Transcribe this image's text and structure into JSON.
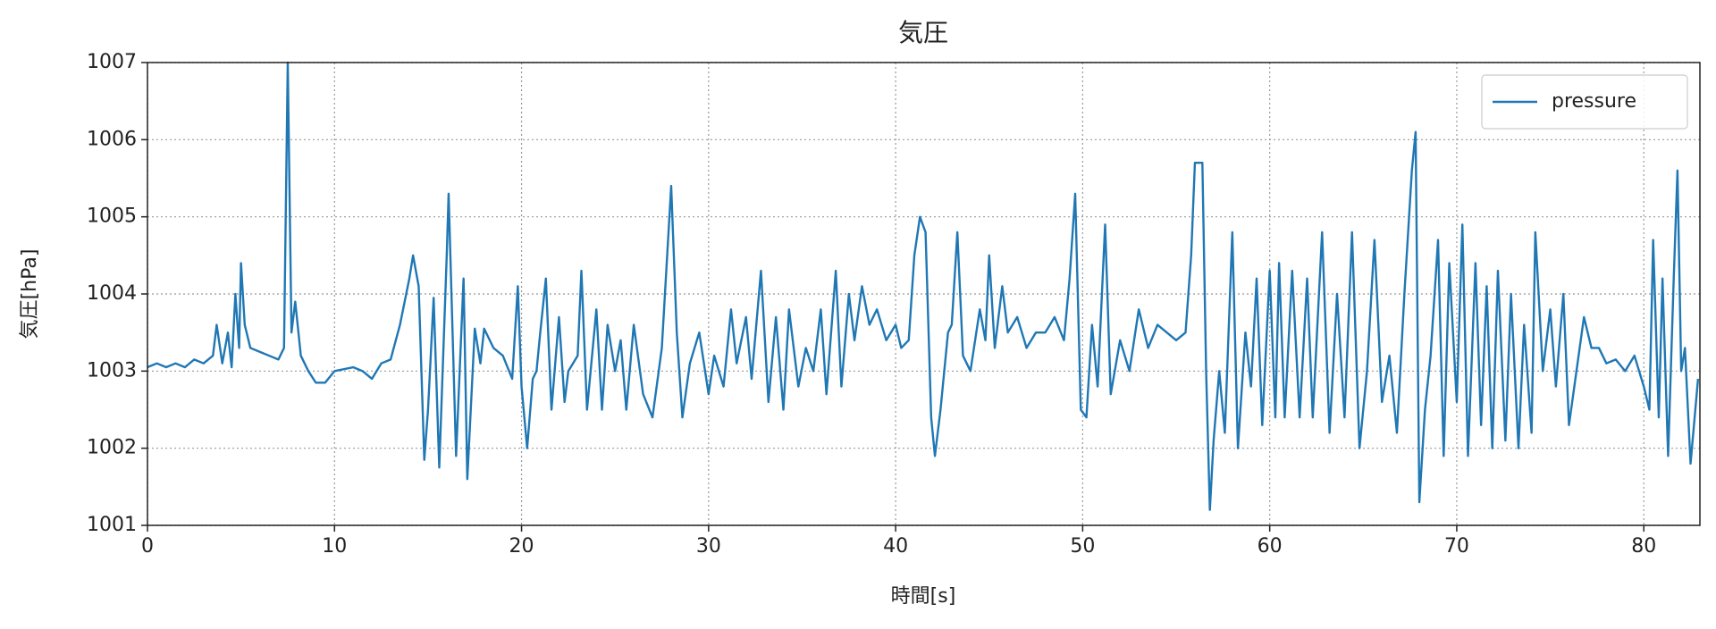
{
  "chart_data": {
    "type": "line",
    "title": "気圧",
    "x_label": "時間[s]",
    "y_label": "気圧[hPa]",
    "x": [
      0,
      0.5,
      1,
      1.5,
      2,
      2.5,
      3,
      3.5,
      3.7,
      4,
      4.3,
      4.5,
      4.7,
      4.9,
      5.0,
      5.2,
      5.5,
      6,
      6.5,
      7,
      7.3,
      7.5,
      7.7,
      7.9,
      8.2,
      8.6,
      9,
      9.5,
      10,
      11,
      11.5,
      12,
      12.5,
      13,
      13.5,
      14,
      14.2,
      14.5,
      14.8,
      15.0,
      15.3,
      15.6,
      16.0,
      16.1,
      16.5,
      16.9,
      17.1,
      17.5,
      17.8,
      18,
      18.5,
      19,
      19.5,
      19.8,
      20,
      20.3,
      20.6,
      20.8,
      21.0,
      21.3,
      21.6,
      22,
      22.3,
      22.5,
      23.0,
      23.2,
      23.5,
      24,
      24.3,
      24.6,
      25,
      25.3,
      25.6,
      26,
      26.5,
      27,
      27.5,
      28,
      28.3,
      28.6,
      29,
      29.5,
      30,
      30.3,
      30.8,
      31.2,
      31.5,
      32,
      32.3,
      32.8,
      33.2,
      33.6,
      34,
      34.3,
      34.8,
      35.2,
      35.6,
      36,
      36.3,
      36.8,
      37.1,
      37.5,
      37.8,
      38.2,
      38.6,
      39,
      39.5,
      40,
      40.3,
      40.7,
      41,
      41.3,
      41.6,
      41.9,
      42.1,
      42.4,
      42.8,
      43.0,
      43.3,
      43.6,
      44,
      44.5,
      44.8,
      45.0,
      45.3,
      45.7,
      46,
      46.5,
      47,
      47.5,
      48,
      48.5,
      49,
      49.3,
      49.6,
      49.9,
      50.2,
      50.5,
      50.8,
      51.2,
      51.5,
      52,
      52.5,
      53,
      53.5,
      54,
      54.5,
      55,
      55.5,
      55.8,
      56.0,
      56.4,
      56.6,
      56.8,
      57.0,
      57.3,
      57.6,
      58,
      58.3,
      58.7,
      59,
      59.3,
      59.6,
      60,
      60.3,
      60.5,
      60.8,
      61.2,
      61.6,
      62,
      62.3,
      62.8,
      63.2,
      63.6,
      64.0,
      64.4,
      64.8,
      65.2,
      65.6,
      66.0,
      66.4,
      66.8,
      67.2,
      67.6,
      67.8,
      68.0,
      68.3,
      68.6,
      69,
      69.3,
      69.6,
      70,
      70.3,
      70.6,
      71,
      71.3,
      71.6,
      71.9,
      72.2,
      72.6,
      72.9,
      73.3,
      73.6,
      74.0,
      74.2,
      74.6,
      75.0,
      75.3,
      75.7,
      76.0,
      76.4,
      76.8,
      77.2,
      77.6,
      78,
      78.5,
      79,
      79.5,
      80,
      80.3,
      80.5,
      80.8,
      81,
      81.3,
      81.6,
      81.8,
      82.0,
      82.2,
      82.5,
      82.9
    ],
    "series": [
      {
        "name": "pressure",
        "color": "#1f77b4",
        "values": [
          1003.05,
          1003.1,
          1003.05,
          1003.1,
          1003.05,
          1003.15,
          1003.1,
          1003.2,
          1003.6,
          1003.1,
          1003.5,
          1003.05,
          1004.0,
          1003.3,
          1004.4,
          1003.6,
          1003.3,
          1003.25,
          1003.2,
          1003.15,
          1003.3,
          1007.0,
          1003.5,
          1003.9,
          1003.2,
          1003.0,
          1002.85,
          1002.85,
          1003.0,
          1003.05,
          1003.0,
          1002.9,
          1003.1,
          1003.15,
          1003.6,
          1004.2,
          1004.5,
          1004.1,
          1001.85,
          1002.5,
          1003.95,
          1001.75,
          1004.5,
          1005.3,
          1001.9,
          1004.2,
          1001.6,
          1003.55,
          1003.1,
          1003.55,
          1003.3,
          1003.2,
          1002.9,
          1004.1,
          1002.8,
          1002.0,
          1002.9,
          1003.0,
          1003.5,
          1004.2,
          1002.5,
          1003.7,
          1002.6,
          1003.0,
          1003.2,
          1004.3,
          1002.5,
          1003.8,
          1002.5,
          1003.6,
          1003.0,
          1003.4,
          1002.5,
          1003.6,
          1002.7,
          1002.4,
          1003.3,
          1005.4,
          1003.5,
          1002.4,
          1003.1,
          1003.5,
          1002.7,
          1003.2,
          1002.8,
          1003.8,
          1003.1,
          1003.7,
          1002.9,
          1004.3,
          1002.6,
          1003.7,
          1002.5,
          1003.8,
          1002.8,
          1003.3,
          1003.0,
          1003.8,
          1002.7,
          1004.3,
          1002.8,
          1004.0,
          1003.4,
          1004.1,
          1003.6,
          1003.8,
          1003.4,
          1003.6,
          1003.3,
          1003.4,
          1004.5,
          1005.0,
          1004.8,
          1002.4,
          1001.9,
          1002.5,
          1003.5,
          1003.6,
          1004.8,
          1003.2,
          1003.0,
          1003.8,
          1003.4,
          1004.5,
          1003.3,
          1004.1,
          1003.5,
          1003.7,
          1003.3,
          1003.5,
          1003.5,
          1003.7,
          1003.4,
          1004.2,
          1005.3,
          1002.5,
          1002.4,
          1003.6,
          1002.8,
          1004.9,
          1002.7,
          1003.4,
          1003.0,
          1003.8,
          1003.3,
          1003.6,
          1003.5,
          1003.4,
          1003.5,
          1004.5,
          1005.7,
          1005.7,
          1003.0,
          1001.2,
          1002.1,
          1003.0,
          1002.2,
          1004.8,
          1002.0,
          1003.5,
          1002.8,
          1004.2,
          1002.3,
          1004.3,
          1002.4,
          1004.4,
          1002.4,
          1004.3,
          1002.4,
          1004.2,
          1002.4,
          1004.8,
          1002.2,
          1004.0,
          1002.4,
          1004.8,
          1002.0,
          1003.0,
          1004.7,
          1002.6,
          1003.2,
          1002.2,
          1004.0,
          1005.6,
          1006.1,
          1001.3,
          1002.5,
          1003.2,
          1004.7,
          1001.9,
          1004.4,
          1002.6,
          1004.9,
          1001.9,
          1004.4,
          1002.3,
          1004.1,
          1002.0,
          1004.3,
          1002.1,
          1004.0,
          1002.0,
          1003.6,
          1002.2,
          1004.8,
          1003.0,
          1003.8,
          1002.8,
          1004.0,
          1002.3,
          1003.0,
          1003.7,
          1003.3,
          1003.3,
          1003.1,
          1003.15,
          1003.0,
          1003.2,
          1002.8,
          1002.5,
          1004.7,
          1002.4,
          1004.2,
          1001.9,
          1004.2,
          1005.6,
          1003.0,
          1003.3,
          1001.8,
          1002.9
        ]
      }
    ],
    "xlim": [
      0,
      83
    ],
    "ylim": [
      1001,
      1007
    ],
    "xticks": [
      0,
      10,
      20,
      30,
      40,
      50,
      60,
      70,
      80
    ],
    "yticks": [
      1001,
      1002,
      1003,
      1004,
      1005,
      1006,
      1007
    ],
    "grid": true,
    "legend": "upper right"
  }
}
